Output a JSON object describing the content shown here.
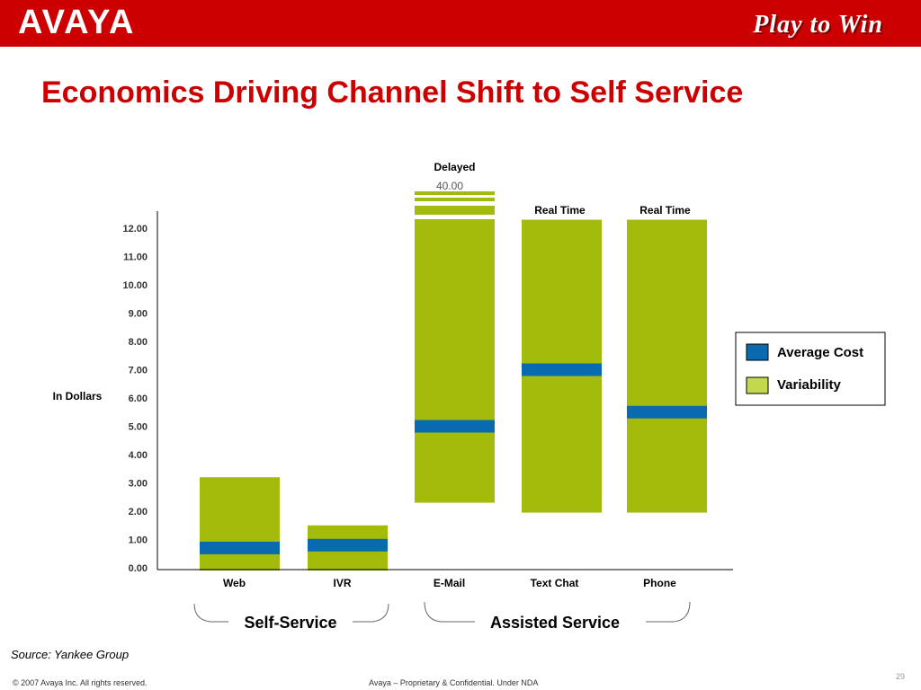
{
  "header": {
    "logo": "AVAYA",
    "tagline": "Play to Win"
  },
  "title": "Economics Driving Channel Shift to Self Service",
  "source": "Source: Yankee Group",
  "footer": {
    "copyright": "© 2007 Avaya Inc. All rights reserved.",
    "confidential": "Avaya – Proprietary & Confidential.  Under NDA",
    "page": "29"
  },
  "colors": {
    "brand_red": "#cc0000",
    "variability": "#a3bb0a",
    "average_cost": "#0a6ab0"
  },
  "chart_data": {
    "type": "bar",
    "subtype": "floating range with average marker",
    "ylabel": "In Dollars",
    "ylim": [
      0,
      12.6
    ],
    "yticks": [
      "0.00",
      "1.00",
      "2.00",
      "3.00",
      "4.00",
      "5.00",
      "6.00",
      "7.00",
      "8.00",
      "9.00",
      "10.00",
      "11.00",
      "12.00"
    ],
    "categories": [
      "Web",
      "IVR",
      "E-Mail",
      "Text Chat",
      "Phone"
    ],
    "series": [
      {
        "name": "Variability",
        "ranges": [
          [
            0,
            3.2
          ],
          [
            0,
            1.5
          ],
          [
            2.3,
            40.0
          ],
          [
            1.95,
            12.3
          ],
          [
            1.95,
            12.3
          ]
        ]
      },
      {
        "name": "Average Cost",
        "values": [
          0.7,
          0.8,
          5.0,
          7.0,
          5.5
        ]
      }
    ],
    "top_labels": [
      "",
      "",
      "Delayed",
      "Real Time",
      "Real Time"
    ],
    "break_value_label": "40.00",
    "groups": [
      {
        "label": "Self-Service",
        "categories": [
          "Web",
          "IVR"
        ]
      },
      {
        "label": "Assisted Service",
        "categories": [
          "E-Mail",
          "Text Chat",
          "Phone"
        ]
      }
    ],
    "legend": {
      "position": "right",
      "entries": [
        "Average Cost",
        "Variability"
      ]
    },
    "grid": false
  }
}
